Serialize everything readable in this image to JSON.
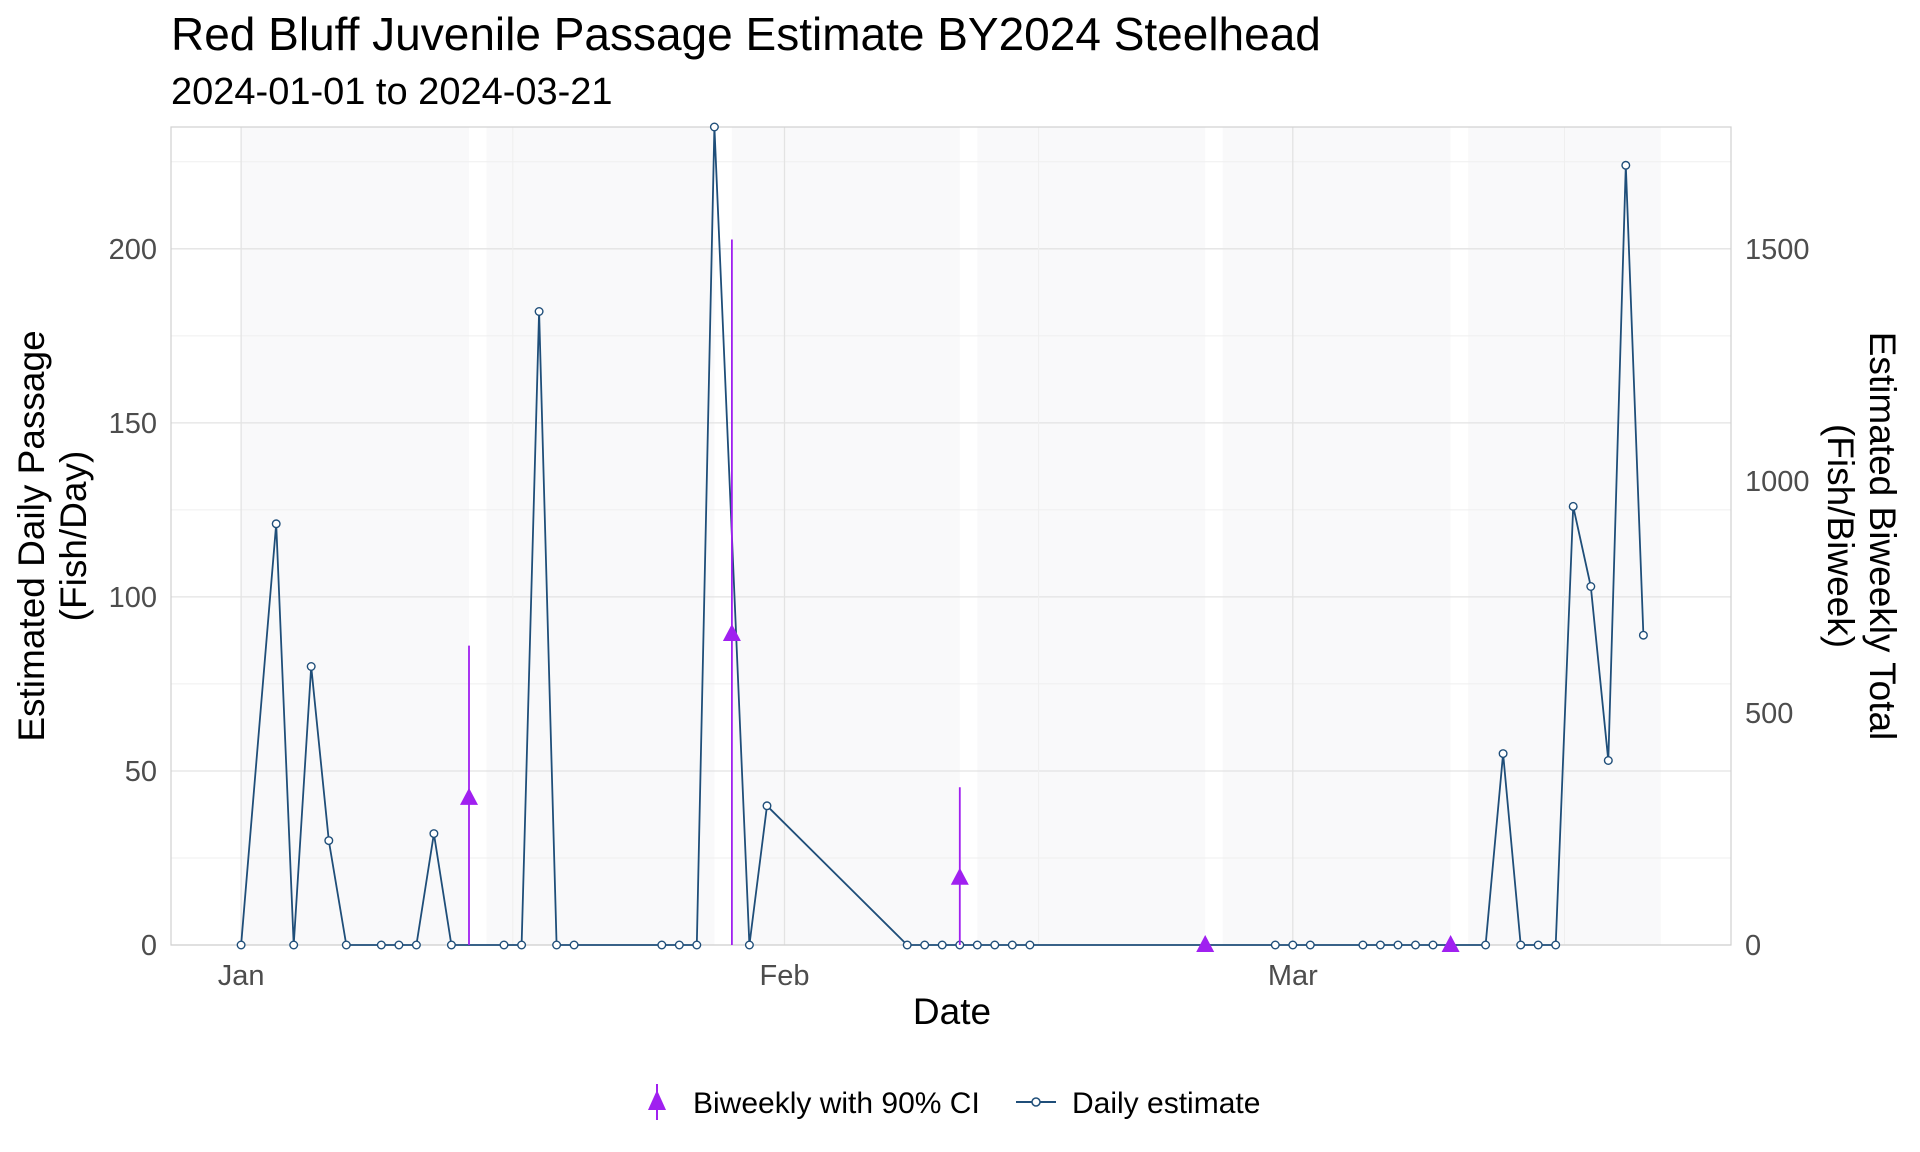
{
  "chart_data": {
    "type": "line",
    "title": "Red Bluff Juvenile Passage Estimate BY2024 Steelhead",
    "subtitle": "2024-01-01 to 2024-03-21",
    "xlabel": "Date",
    "ylabel_left": [
      "Estimated Daily Passage",
      "(Fish/Day)"
    ],
    "ylabel_right": [
      "Estimated Biweekly Total",
      "(Fish/Biweek)"
    ],
    "x_ticks": [
      {
        "date": "2024-01-01",
        "label": "Jan"
      },
      {
        "date": "2024-02-01",
        "label": "Feb"
      },
      {
        "date": "2024-03-01",
        "label": "Mar"
      }
    ],
    "xlim": [
      "2023-12-28",
      "2024-03-26"
    ],
    "ylim_left": [
      0,
      235
    ],
    "ylim_right": [
      0,
      1762.5
    ],
    "y_ticks_left": [
      0,
      50,
      100,
      150,
      200
    ],
    "y_ticks_right": [
      0,
      500,
      1000,
      1500
    ],
    "grid": true,
    "shaded_periods": [
      [
        "2024-01-01",
        "2024-01-13"
      ],
      [
        "2024-01-15",
        "2024-01-27"
      ],
      [
        "2024-01-29",
        "2024-02-10"
      ],
      [
        "2024-02-12",
        "2024-02-24"
      ],
      [
        "2024-02-26",
        "2024-03-09"
      ],
      [
        "2024-03-11",
        "2024-03-21"
      ]
    ],
    "legend_position": "bottom",
    "series": [
      {
        "name": "Daily estimate",
        "axis": "left",
        "color": "#1f4e79",
        "points": [
          [
            "2024-01-01",
            0
          ],
          [
            "2024-01-03",
            121
          ],
          [
            "2024-01-04",
            0
          ],
          [
            "2024-01-05",
            80
          ],
          [
            "2024-01-06",
            30
          ],
          [
            "2024-01-07",
            0
          ],
          [
            "2024-01-09",
            0
          ],
          [
            "2024-01-10",
            0
          ],
          [
            "2024-01-11",
            0
          ],
          [
            "2024-01-12",
            32
          ],
          [
            "2024-01-13",
            0
          ],
          [
            "2024-01-16",
            0
          ],
          [
            "2024-01-17",
            0
          ],
          [
            "2024-01-18",
            182
          ],
          [
            "2024-01-19",
            0
          ],
          [
            "2024-01-20",
            0
          ],
          [
            "2024-01-25",
            0
          ],
          [
            "2024-01-26",
            0
          ],
          [
            "2024-01-27",
            0
          ],
          [
            "2024-01-28",
            235
          ],
          [
            "2024-01-30",
            0
          ],
          [
            "2024-01-31",
            40
          ],
          [
            "2024-02-08",
            0
          ],
          [
            "2024-02-09",
            0
          ],
          [
            "2024-02-10",
            0
          ],
          [
            "2024-02-11",
            0
          ],
          [
            "2024-02-12",
            0
          ],
          [
            "2024-02-13",
            0
          ],
          [
            "2024-02-14",
            0
          ],
          [
            "2024-02-15",
            0
          ],
          [
            "2024-02-29",
            0
          ],
          [
            "2024-03-01",
            0
          ],
          [
            "2024-03-02",
            0
          ],
          [
            "2024-03-05",
            0
          ],
          [
            "2024-03-06",
            0
          ],
          [
            "2024-03-07",
            0
          ],
          [
            "2024-03-08",
            0
          ],
          [
            "2024-03-09",
            0
          ],
          [
            "2024-03-12",
            0
          ],
          [
            "2024-03-13",
            55
          ],
          [
            "2024-03-14",
            0
          ],
          [
            "2024-03-15",
            0
          ],
          [
            "2024-03-16",
            0
          ],
          [
            "2024-03-17",
            126
          ],
          [
            "2024-03-18",
            103
          ],
          [
            "2024-03-19",
            53
          ],
          [
            "2024-03-20",
            224
          ],
          [
            "2024-03-21",
            89
          ]
        ]
      },
      {
        "name": "Biweekly with 90% CI",
        "axis": "right",
        "color": "#a020f0",
        "points": [
          {
            "x": "2024-01-14",
            "y": 317,
            "lower": 0,
            "upper": 645
          },
          {
            "x": "2024-01-29",
            "y": 670,
            "lower": 0,
            "upper": 1520
          },
          {
            "x": "2024-02-11",
            "y": 145,
            "lower": 0,
            "upper": 340
          },
          {
            "x": "2024-02-25",
            "y": 0,
            "lower": 0,
            "upper": 0
          },
          {
            "x": "2024-03-10",
            "y": 0,
            "lower": 0,
            "upper": 0
          }
        ]
      }
    ]
  }
}
